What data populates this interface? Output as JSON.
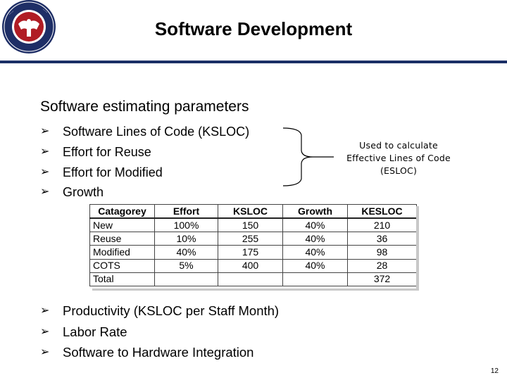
{
  "header": {
    "title": "Software Development"
  },
  "section": {
    "heading": "Software estimating parameters",
    "bullets_primary": [
      "Software Lines of Code (KSLOC)",
      "Effort for Reuse",
      "Effort for Modified",
      "Growth"
    ],
    "note_lines": [
      "Used to calculate",
      "Effective Lines of Code",
      "(ESLOC)"
    ],
    "bullets_secondary": [
      "Productivity (KSLOC per Staff Month)",
      "Labor Rate",
      "Software to Hardware Integration"
    ],
    "bullet_icon": "arrow-bullet-icon"
  },
  "table": {
    "headers": [
      "Catagorey",
      "Effort",
      "KSLOC",
      "Growth",
      "KESLOC"
    ],
    "rows": [
      [
        "New",
        "100%",
        "150",
        "40%",
        "210"
      ],
      [
        "Reuse",
        "10%",
        "255",
        "40%",
        "36"
      ],
      [
        "Modified",
        "40%",
        "175",
        "40%",
        "98"
      ],
      [
        "COTS",
        "5%",
        "400",
        "40%",
        "28"
      ],
      [
        "Total",
        "",
        "",
        "",
        "372"
      ]
    ]
  },
  "footer": {
    "page_number": "12"
  },
  "colors": {
    "header_rule": "#1b2f66",
    "seal_blue": "#1e2e66",
    "seal_red": "#b01c24"
  }
}
